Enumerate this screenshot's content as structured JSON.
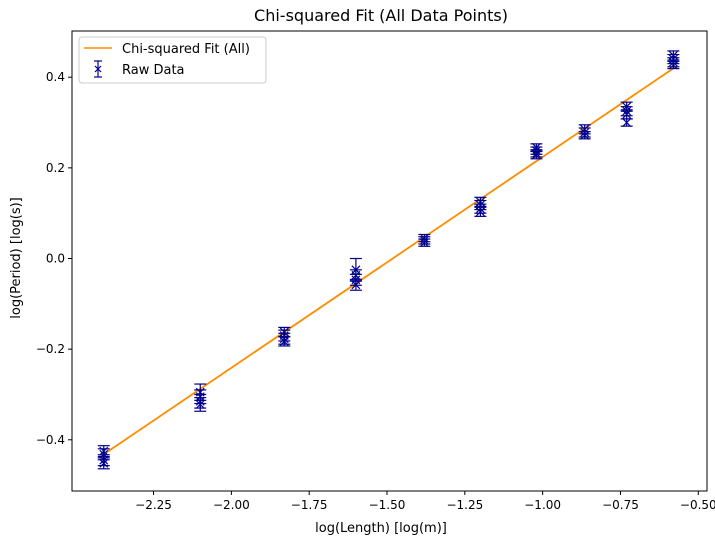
{
  "chart_data": {
    "type": "scatter",
    "title": "Chi-squared Fit (All Data Points)",
    "xlabel": "log(Length) [log(m)]",
    "ylabel": "log(Period) [log(s)]",
    "xlim": [
      -2.512,
      -0.472
    ],
    "ylim": [
      -0.513,
      0.502
    ],
    "xticks": [
      -2.25,
      -2.0,
      -1.75,
      -1.5,
      -1.25,
      -1.0,
      -0.75,
      -0.5
    ],
    "xtick_labels": [
      "−2.25",
      "−2.00",
      "−1.75",
      "−1.50",
      "−1.25",
      "−1.00",
      "−0.75",
      "−0.50"
    ],
    "yticks": [
      -0.4,
      -0.2,
      0.0,
      0.2,
      0.4
    ],
    "ytick_labels": [
      "−0.4",
      "−0.2",
      "0.0",
      "0.2",
      "0.4"
    ],
    "legend_position": "top-left",
    "series": [
      {
        "name": "Chi-squared Fit (All)",
        "kind": "line",
        "color": "#ff8c00",
        "x": [
          -2.41,
          -0.575
        ],
        "y": [
          -0.432,
          0.422
        ]
      },
      {
        "name": "Raw Data",
        "kind": "errorbar",
        "marker": "x",
        "color": "#00008b",
        "points": [
          {
            "x": -2.41,
            "y": -0.425,
            "err": 0.012
          },
          {
            "x": -2.41,
            "y": -0.432,
            "err": 0.012
          },
          {
            "x": -2.41,
            "y": -0.445,
            "err": 0.012
          },
          {
            "x": -2.41,
            "y": -0.452,
            "err": 0.012
          },
          {
            "x": -2.1,
            "y": -0.295,
            "err": 0.018
          },
          {
            "x": -2.1,
            "y": -0.305,
            "err": 0.015
          },
          {
            "x": -2.1,
            "y": -0.315,
            "err": 0.015
          },
          {
            "x": -2.1,
            "y": -0.322,
            "err": 0.015
          },
          {
            "x": -1.83,
            "y": -0.162,
            "err": 0.01
          },
          {
            "x": -1.83,
            "y": -0.17,
            "err": 0.012
          },
          {
            "x": -1.83,
            "y": -0.177,
            "err": 0.012
          },
          {
            "x": -1.83,
            "y": -0.183,
            "err": 0.01
          },
          {
            "x": -1.6,
            "y": -0.025,
            "err": 0.025
          },
          {
            "x": -1.6,
            "y": -0.037,
            "err": 0.012
          },
          {
            "x": -1.6,
            "y": -0.047,
            "err": 0.012
          },
          {
            "x": -1.6,
            "y": -0.058,
            "err": 0.012
          },
          {
            "x": -1.38,
            "y": 0.045,
            "err": 0.008
          },
          {
            "x": -1.38,
            "y": 0.04,
            "err": 0.008
          },
          {
            "x": -1.38,
            "y": 0.035,
            "err": 0.008
          },
          {
            "x": -1.2,
            "y": 0.125,
            "err": 0.01
          },
          {
            "x": -1.2,
            "y": 0.118,
            "err": 0.01
          },
          {
            "x": -1.2,
            "y": 0.11,
            "err": 0.01
          },
          {
            "x": -1.2,
            "y": 0.103,
            "err": 0.01
          },
          {
            "x": -1.02,
            "y": 0.245,
            "err": 0.008
          },
          {
            "x": -1.02,
            "y": 0.238,
            "err": 0.008
          },
          {
            "x": -1.02,
            "y": 0.232,
            "err": 0.008
          },
          {
            "x": -1.02,
            "y": 0.228,
            "err": 0.008
          },
          {
            "x": -0.865,
            "y": 0.285,
            "err": 0.01
          },
          {
            "x": -0.865,
            "y": 0.278,
            "err": 0.01
          },
          {
            "x": -0.865,
            "y": 0.272,
            "err": 0.008
          },
          {
            "x": -0.73,
            "y": 0.335,
            "err": 0.01
          },
          {
            "x": -0.73,
            "y": 0.325,
            "err": 0.01
          },
          {
            "x": -0.73,
            "y": 0.318,
            "err": 0.01
          },
          {
            "x": -0.73,
            "y": 0.3,
            "err": 0.008
          },
          {
            "x": -0.58,
            "y": 0.448,
            "err": 0.01
          },
          {
            "x": -0.58,
            "y": 0.44,
            "err": 0.01
          },
          {
            "x": -0.58,
            "y": 0.433,
            "err": 0.01
          },
          {
            "x": -0.58,
            "y": 0.427,
            "err": 0.008
          }
        ]
      }
    ]
  }
}
